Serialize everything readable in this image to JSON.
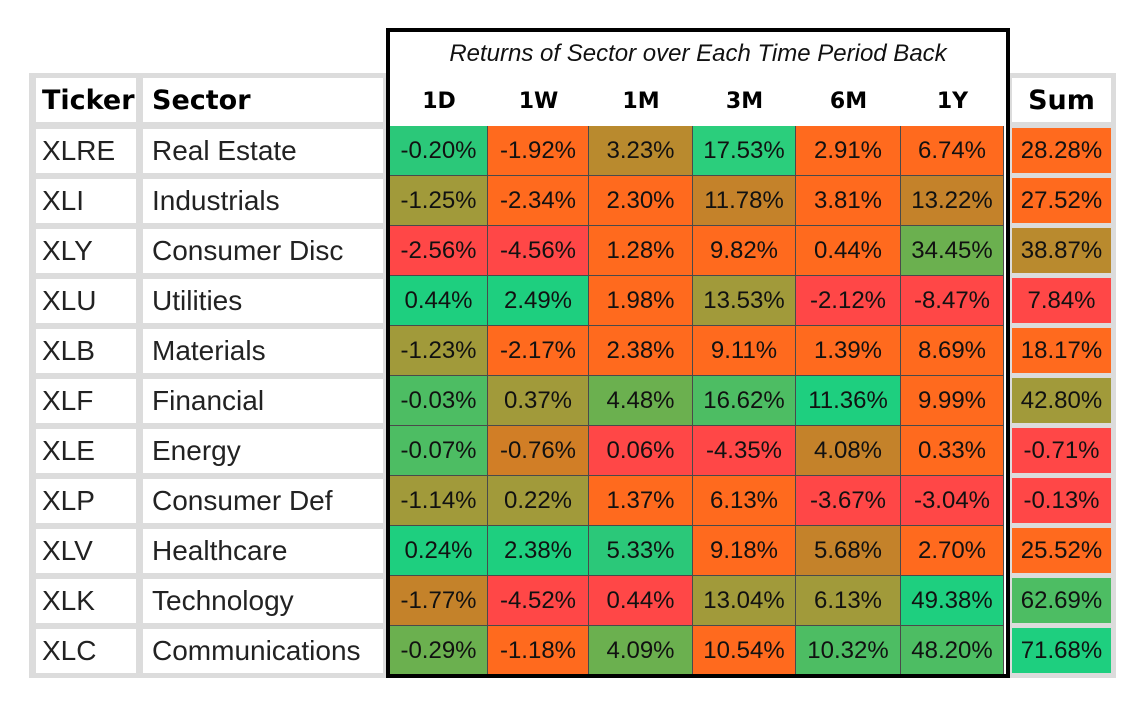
{
  "chart_data": {
    "type": "table",
    "title": "Returns of Sector over Each Time Period Back",
    "ticker_header": "Ticker",
    "sector_header": "Sector",
    "sum_header": "Sum",
    "periods": [
      "1D",
      "1W",
      "1M",
      "3M",
      "6M",
      "1Y"
    ],
    "rows": [
      {
        "ticker": "XLRE",
        "sector": "Real Estate",
        "values": [
          "-0.20%",
          "-1.92%",
          "3.23%",
          "17.53%",
          "2.91%",
          "6.74%"
        ],
        "sum": "28.28%"
      },
      {
        "ticker": "XLI",
        "sector": "Industrials",
        "values": [
          "-1.25%",
          "-2.34%",
          "2.30%",
          "11.78%",
          "3.81%",
          "13.22%"
        ],
        "sum": "27.52%"
      },
      {
        "ticker": "XLY",
        "sector": "Consumer Disc",
        "values": [
          "-2.56%",
          "-4.56%",
          "1.28%",
          "9.82%",
          "0.44%",
          "34.45%"
        ],
        "sum": "38.87%"
      },
      {
        "ticker": "XLU",
        "sector": "Utilities",
        "values": [
          "0.44%",
          "2.49%",
          "1.98%",
          "13.53%",
          "-2.12%",
          "-8.47%"
        ],
        "sum": "7.84%"
      },
      {
        "ticker": "XLB",
        "sector": "Materials",
        "values": [
          "-1.23%",
          "-2.17%",
          "2.38%",
          "9.11%",
          "1.39%",
          "8.69%"
        ],
        "sum": "18.17%"
      },
      {
        "ticker": "XLF",
        "sector": "Financial",
        "values": [
          "-0.03%",
          "0.37%",
          "4.48%",
          "16.62%",
          "11.36%",
          "9.99%"
        ],
        "sum": "42.80%"
      },
      {
        "ticker": "XLE",
        "sector": "Energy",
        "values": [
          "-0.07%",
          "-0.76%",
          "0.06%",
          "-4.35%",
          "4.08%",
          "0.33%"
        ],
        "sum": "-0.71%"
      },
      {
        "ticker": "XLP",
        "sector": "Consumer Def",
        "values": [
          "-1.14%",
          "0.22%",
          "1.37%",
          "6.13%",
          "-3.67%",
          "-3.04%"
        ],
        "sum": "-0.13%"
      },
      {
        "ticker": "XLV",
        "sector": "Healthcare",
        "values": [
          "0.24%",
          "2.38%",
          "5.33%",
          "9.18%",
          "5.68%",
          "2.70%"
        ],
        "sum": "25.52%"
      },
      {
        "ticker": "XLK",
        "sector": "Technology",
        "values": [
          "-1.77%",
          "-4.52%",
          "0.44%",
          "13.04%",
          "6.13%",
          "49.38%"
        ],
        "sum": "62.69%"
      },
      {
        "ticker": "XLC",
        "sector": "Communications",
        "values": [
          "-0.29%",
          "-1.18%",
          "4.09%",
          "10.54%",
          "10.32%",
          "48.20%"
        ],
        "sum": "71.68%"
      }
    ],
    "cell_colors": [
      [
        "#2bc879",
        "#ff6a1e",
        "#b98a2e",
        "#2bce7c",
        "#ff6a1e",
        "#ff6a1e"
      ],
      [
        "#a19a3a",
        "#ff6a1e",
        "#ff6a1e",
        "#c4822a",
        "#ff6a1e",
        "#c4822a"
      ],
      [
        "#ff4747",
        "#ff4747",
        "#ff6a1e",
        "#ff6a1e",
        "#ff6a1e",
        "#6bb04f"
      ],
      [
        "#1ecf7f",
        "#1ecf7f",
        "#ff6a1e",
        "#a19a3a",
        "#ff4747",
        "#ff4747"
      ],
      [
        "#a19a3a",
        "#ff6a1e",
        "#ff6a1e",
        "#ff6a1e",
        "#ff6a1e",
        "#ff6a1e"
      ],
      [
        "#4dbd63",
        "#a19a3a",
        "#6bb04f",
        "#4dbd63",
        "#1ecf7f",
        "#ff6a1e"
      ],
      [
        "#4dbd63",
        "#d17e26",
        "#ff4747",
        "#ff4747",
        "#c4822a",
        "#ff6a1e"
      ],
      [
        "#a19a3a",
        "#a19a3a",
        "#ff6a1e",
        "#ff6a1e",
        "#ff4747",
        "#ff4747"
      ],
      [
        "#1ecf7f",
        "#1ecf7f",
        "#2bc879",
        "#ff6a1e",
        "#c4822a",
        "#ff6a1e"
      ],
      [
        "#c4822a",
        "#ff4747",
        "#ff4747",
        "#a19a3a",
        "#a19a3a",
        "#1ecf7f"
      ],
      [
        "#6bb04f",
        "#ff6a1e",
        "#6bb04f",
        "#ff6a1e",
        "#4dbd63",
        "#4dbd63"
      ]
    ],
    "sum_colors": [
      "#ff6a1e",
      "#ff6a1e",
      "#b98a2e",
      "#ff4747",
      "#ff6a1e",
      "#a19a3a",
      "#ff4747",
      "#ff4747",
      "#ff6a1e",
      "#4dbd63",
      "#1ecf7f"
    ]
  }
}
